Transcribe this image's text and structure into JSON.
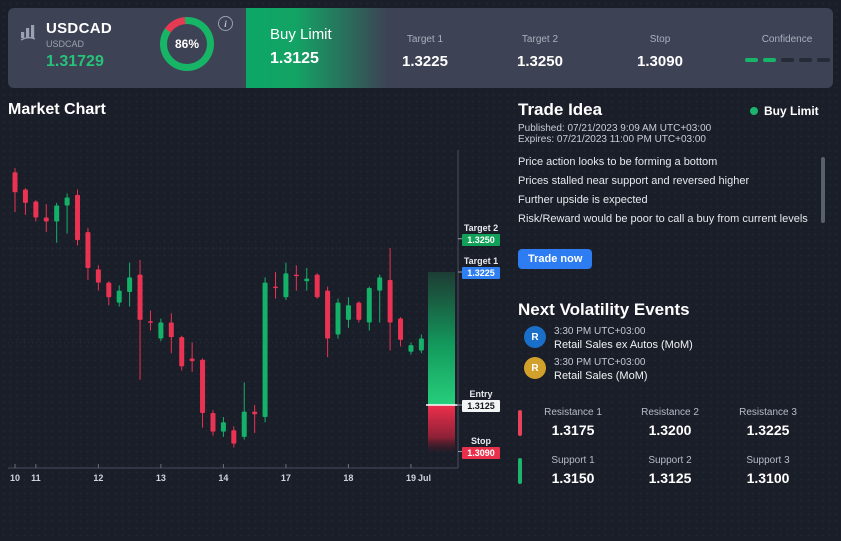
{
  "header": {
    "symbol": "USDCAD",
    "symbol_sub": "USDCAD",
    "price": "1.31729",
    "gauge": {
      "percent": 86,
      "label": "86%"
    },
    "info_icon": "i",
    "action": {
      "label": "Buy Limit",
      "value": "1.3125"
    },
    "stats": [
      {
        "label": "Target 1",
        "value": "1.3225"
      },
      {
        "label": "Target 2",
        "value": "1.3250"
      },
      {
        "label": "Stop",
        "value": "1.3090"
      }
    ],
    "confidence": {
      "label": "Confidence",
      "level": 2,
      "total": 5
    }
  },
  "chart": {
    "title": "Market Chart"
  },
  "chart_data": {
    "type": "candlestick",
    "symbol": "USDCAD",
    "x_tick_labels": [
      "10",
      "11",
      "12",
      "13",
      "14",
      "17",
      "18",
      "19"
    ],
    "x_tick_indices": [
      0,
      2,
      8,
      14,
      20,
      26,
      32,
      38
    ],
    "x_suffix_label": "Jul",
    "y_range": [
      1.3078,
      1.3317
    ],
    "gridline_prices": [
      1.3243,
      1.3172
    ],
    "candles": [
      [
        1.33,
        1.3303,
        1.327,
        1.3285
      ],
      [
        1.3287,
        1.3288,
        1.3268,
        1.3277
      ],
      [
        1.3278,
        1.3279,
        1.3263,
        1.3266
      ],
      [
        1.3266,
        1.3276,
        1.3255,
        1.3263
      ],
      [
        1.3263,
        1.3277,
        1.3247,
        1.3275
      ],
      [
        1.3275,
        1.3284,
        1.3254,
        1.3281
      ],
      [
        1.3283,
        1.3287,
        1.3245,
        1.3249
      ],
      [
        1.3255,
        1.3258,
        1.3219,
        1.3228
      ],
      [
        1.3227,
        1.323,
        1.3211,
        1.3217
      ],
      [
        1.3217,
        1.3218,
        1.32,
        1.3206
      ],
      [
        1.3202,
        1.3215,
        1.3199,
        1.3211
      ],
      [
        1.321,
        1.3232,
        1.3199,
        1.3221
      ],
      [
        1.3223,
        1.3234,
        1.3144,
        1.3189
      ],
      [
        1.3188,
        1.3196,
        1.3181,
        1.3187
      ],
      [
        1.3175,
        1.319,
        1.3173,
        1.3187
      ],
      [
        1.3187,
        1.3194,
        1.3164,
        1.3176
      ],
      [
        1.3176,
        1.3177,
        1.3151,
        1.3154
      ],
      [
        1.316,
        1.3172,
        1.315,
        1.3158
      ],
      [
        1.3159,
        1.316,
        1.3108,
        1.3119
      ],
      [
        1.3119,
        1.3121,
        1.3102,
        1.3105
      ],
      [
        1.3105,
        1.3116,
        1.3101,
        1.3112
      ],
      [
        1.3106,
        1.3109,
        1.3093,
        1.3096
      ],
      [
        1.3101,
        1.3142,
        1.3099,
        1.312
      ],
      [
        1.312,
        1.3125,
        1.3104,
        1.3118
      ],
      [
        1.3116,
        1.3221,
        1.3112,
        1.3217
      ],
      [
        1.3214,
        1.3225,
        1.3205,
        1.3213
      ],
      [
        1.3206,
        1.3232,
        1.3204,
        1.3224
      ],
      [
        1.3223,
        1.323,
        1.3211,
        1.3222
      ],
      [
        1.3218,
        1.3228,
        1.3211,
        1.322
      ],
      [
        1.3223,
        1.3224,
        1.3205,
        1.3206
      ],
      [
        1.3211,
        1.3214,
        1.3161,
        1.3175
      ],
      [
        1.3178,
        1.3205,
        1.3175,
        1.3202
      ],
      [
        1.3189,
        1.3206,
        1.3183,
        1.32
      ],
      [
        1.3202,
        1.3203,
        1.3187,
        1.3189
      ],
      [
        1.3187,
        1.3214,
        1.3181,
        1.3213
      ],
      [
        1.3211,
        1.3223,
        1.3187,
        1.3221
      ],
      [
        1.3219,
        1.3243,
        1.3166,
        1.3187
      ],
      [
        1.319,
        1.3191,
        1.3169,
        1.3174
      ],
      [
        1.3165,
        1.3172,
        1.3163,
        1.317
      ],
      [
        1.3166,
        1.3178,
        1.3164,
        1.3175
      ]
    ],
    "levels": [
      {
        "name": "Target 2",
        "value": 1.325,
        "display": "1.3250",
        "color": "green"
      },
      {
        "name": "Target 1",
        "value": 1.3225,
        "display": "1.3225",
        "color": "blue"
      },
      {
        "name": "Entry",
        "value": 1.3125,
        "display": "1.3125",
        "color": "white"
      },
      {
        "name": "Stop",
        "value": 1.309,
        "display": "1.3090",
        "color": "red"
      }
    ],
    "zone": {
      "reward_top": 1.3225,
      "entry": 1.3125,
      "risk_bottom": 1.309
    }
  },
  "trade_idea": {
    "title": "Trade Idea",
    "direction": "Buy Limit",
    "published": "Published:  07/21/2023 9:09 AM UTC+03:00",
    "expires": "Expires:  07/21/2023 11:00 PM UTC+03:00",
    "bullets": [
      "Price action looks to be forming a bottom",
      "Prices stalled near support and reversed higher",
      "Further upside is expected",
      "Risk/Reward would be poor to call a buy from current levels"
    ],
    "trade_button": "Trade now"
  },
  "events": {
    "title": "Next Volatility Events",
    "items": [
      {
        "initial": "R",
        "time": "3:30 PM UTC+03:00",
        "name": "Retail Sales ex Autos (MoM)",
        "color": "blue"
      },
      {
        "initial": "R",
        "time": "3:30 PM UTC+03:00",
        "name": "Retail Sales (MoM)",
        "color": "gold"
      }
    ]
  },
  "levels_grid": {
    "resistance": [
      {
        "label": "Resistance 1",
        "value": "1.3175"
      },
      {
        "label": "Resistance 2",
        "value": "1.3200"
      },
      {
        "label": "Resistance 3",
        "value": "1.3225"
      }
    ],
    "support": [
      {
        "label": "Support 1",
        "value": "1.3150"
      },
      {
        "label": "Support 2",
        "value": "1.3125"
      },
      {
        "label": "Support 3",
        "value": "1.3100"
      }
    ]
  },
  "colors": {
    "up": "#14b269",
    "down": "#ea3352",
    "accent_green": "#17b56a",
    "accent_blue": "#2e7ff2",
    "accent_red": "#e8304a",
    "header_bg": "#3d4254"
  }
}
